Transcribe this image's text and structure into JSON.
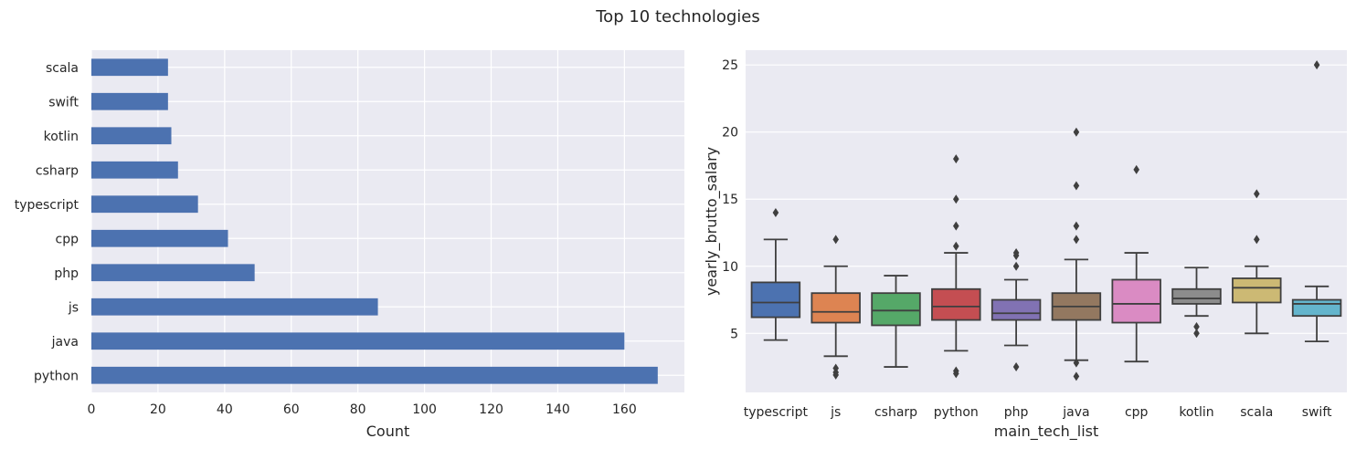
{
  "suptitle": "Top 10 technologies",
  "chart_data": [
    {
      "type": "bar",
      "orientation": "horizontal",
      "categories": [
        "python",
        "java",
        "js",
        "php",
        "cpp",
        "typescript",
        "csharp",
        "kotlin",
        "swift",
        "scala"
      ],
      "values": [
        170,
        160,
        86,
        49,
        41,
        32,
        26,
        24,
        23,
        23
      ],
      "xlabel": "Count",
      "ylabel": "",
      "xlim": [
        0,
        178
      ],
      "xticks": [
        0,
        20,
        40,
        60,
        80,
        100,
        120,
        140,
        160
      ],
      "color": "#4c72b0",
      "grid": true
    },
    {
      "type": "box",
      "categories": [
        "typescript",
        "js",
        "csharp",
        "python",
        "php",
        "java",
        "cpp",
        "kotlin",
        "scala",
        "swift"
      ],
      "xlabel": "main_tech_list",
      "ylabel": "yearly_brutto_salary",
      "ylim": [
        0.6,
        26.1
      ],
      "yticks": [
        5,
        10,
        15,
        20,
        25
      ],
      "grid": true,
      "boxes": [
        {
          "name": "typescript",
          "whislo": 4.5,
          "q1": 6.2,
          "med": 7.3,
          "q3": 8.8,
          "whishi": 12.0,
          "fliers": [
            14.0
          ],
          "color": "#4c72b0"
        },
        {
          "name": "js",
          "whislo": 3.3,
          "q1": 5.8,
          "med": 6.6,
          "q3": 8.0,
          "whishi": 10.0,
          "fliers": [
            12.0,
            2.4,
            2.1,
            1.9
          ],
          "color": "#dd8452"
        },
        {
          "name": "csharp",
          "whislo": 2.5,
          "q1": 5.6,
          "med": 6.7,
          "q3": 8.0,
          "whishi": 9.3,
          "fliers": [],
          "color": "#55a868"
        },
        {
          "name": "python",
          "whislo": 3.7,
          "q1": 6.0,
          "med": 7.0,
          "q3": 8.3,
          "whishi": 11.0,
          "fliers": [
            18.0,
            15.0,
            13.0,
            11.5,
            2.2,
            2.0
          ],
          "color": "#c44e52"
        },
        {
          "name": "php",
          "whislo": 4.1,
          "q1": 6.0,
          "med": 6.5,
          "q3": 7.5,
          "whishi": 9.0,
          "fliers": [
            11.0,
            10.8,
            10.0,
            2.5
          ],
          "color": "#8172b3"
        },
        {
          "name": "java",
          "whislo": 3.0,
          "q1": 6.0,
          "med": 7.0,
          "q3": 8.0,
          "whishi": 10.5,
          "fliers": [
            20.0,
            16.0,
            13.0,
            12.0,
            2.8,
            1.8
          ],
          "color": "#937860"
        },
        {
          "name": "cpp",
          "whislo": 2.9,
          "q1": 5.8,
          "med": 7.2,
          "q3": 9.0,
          "whishi": 11.0,
          "fliers": [
            17.2
          ],
          "color": "#da8bc3"
        },
        {
          "name": "kotlin",
          "whislo": 6.3,
          "q1": 7.2,
          "med": 7.6,
          "q3": 8.3,
          "whishi": 9.9,
          "fliers": [
            5.5,
            5.0
          ],
          "color": "#8c8c8c"
        },
        {
          "name": "scala",
          "whislo": 5.0,
          "q1": 7.3,
          "med": 8.4,
          "q3": 9.1,
          "whishi": 10.0,
          "fliers": [
            15.4,
            12.0
          ],
          "color": "#ccb974"
        },
        {
          "name": "swift",
          "whislo": 4.4,
          "q1": 6.3,
          "med": 7.2,
          "q3": 7.5,
          "whishi": 8.5,
          "fliers": [
            25.0
          ],
          "color": "#64b5cd"
        }
      ]
    }
  ]
}
